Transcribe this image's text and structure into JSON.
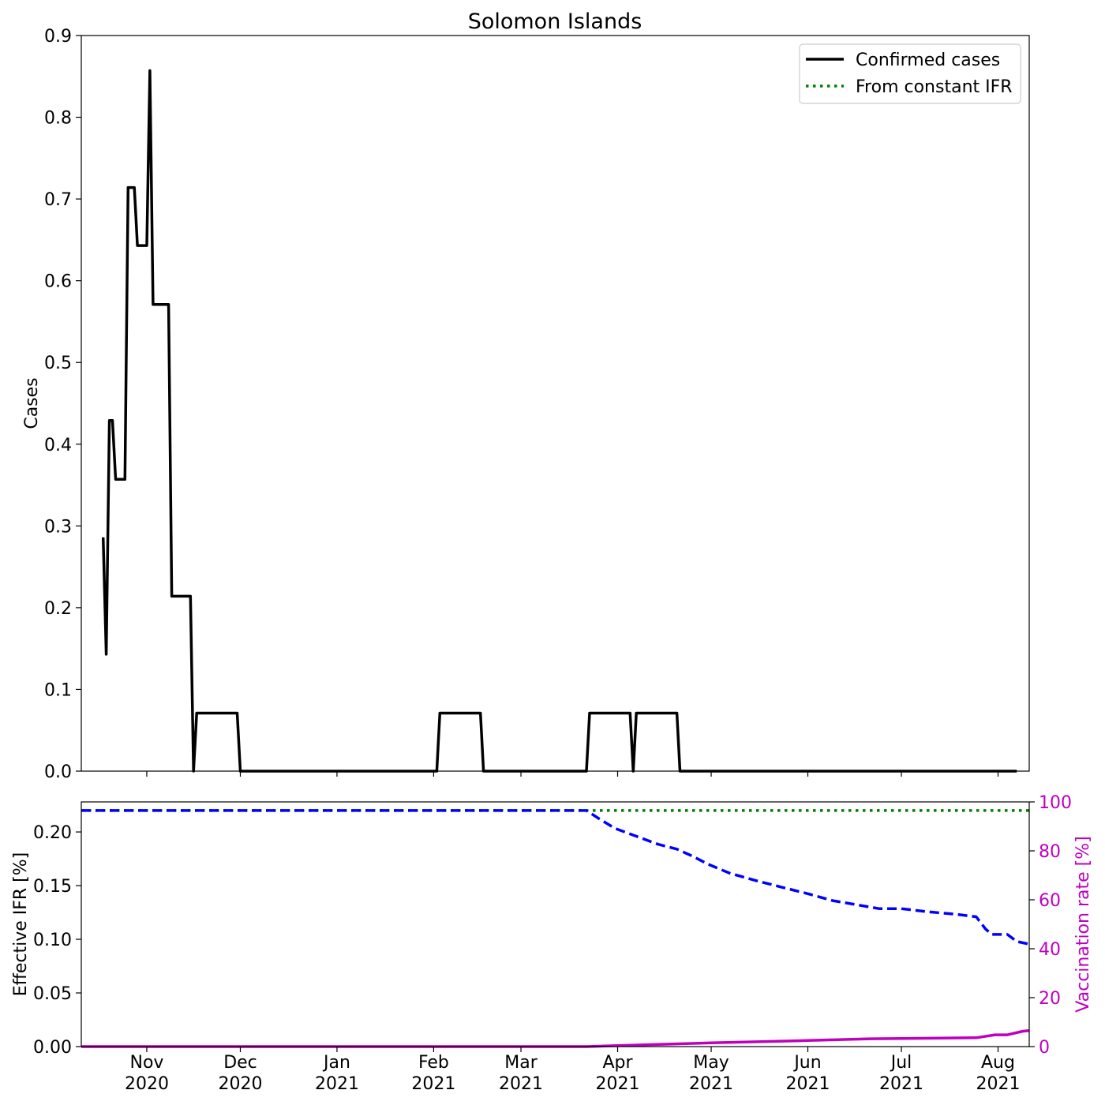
{
  "chart_data": [
    {
      "type": "line",
      "title": "Solomon Islands",
      "xlabel": "",
      "ylabel": "Cases",
      "ylim": [
        0,
        0.9
      ],
      "xlim": [
        "2020-10-11",
        "2021-08-11"
      ],
      "yticks": [
        0.0,
        0.1,
        0.2,
        0.3,
        0.4,
        0.5,
        0.6,
        0.7,
        0.8,
        0.9
      ],
      "ytick_labels": [
        "0.0",
        "0.1",
        "0.2",
        "0.3",
        "0.4",
        "0.5",
        "0.6",
        "0.7",
        "0.8",
        "0.9"
      ],
      "legend": {
        "placement": "top-right",
        "entries": [
          {
            "label": "Confirmed cases",
            "color": "#000000",
            "style": "solid"
          },
          {
            "label": "From constant IFR",
            "color": "#008000",
            "style": "dotted"
          }
        ]
      },
      "series": [
        {
          "name": "Confirmed cases",
          "color": "#000000",
          "points": [
            [
              "2020-10-18",
              0.286
            ],
            [
              "2020-10-19",
              0.143
            ],
            [
              "2020-10-20",
              0.429
            ],
            [
              "2020-10-21",
              0.429
            ],
            [
              "2020-10-22",
              0.357
            ],
            [
              "2020-10-25",
              0.357
            ],
            [
              "2020-10-26",
              0.714
            ],
            [
              "2020-10-28",
              0.714
            ],
            [
              "2020-10-29",
              0.643
            ],
            [
              "2020-11-01",
              0.643
            ],
            [
              "2020-11-02",
              0.857
            ],
            [
              "2020-11-03",
              0.571
            ],
            [
              "2020-11-08",
              0.571
            ],
            [
              "2020-11-09",
              0.214
            ],
            [
              "2020-11-15",
              0.214
            ],
            [
              "2020-11-16",
              0.0
            ],
            [
              "2020-11-17",
              0.071
            ],
            [
              "2020-11-30",
              0.071
            ],
            [
              "2020-12-01",
              0.0
            ],
            [
              "2021-02-02",
              0.0
            ],
            [
              "2021-02-03",
              0.071
            ],
            [
              "2021-02-16",
              0.071
            ],
            [
              "2021-02-17",
              0.0
            ],
            [
              "2021-03-22",
              0.0
            ],
            [
              "2021-03-23",
              0.071
            ],
            [
              "2021-04-05",
              0.071
            ],
            [
              "2021-04-06",
              0.0
            ],
            [
              "2021-04-07",
              0.071
            ],
            [
              "2021-04-20",
              0.071
            ],
            [
              "2021-04-21",
              0.0
            ],
            [
              "2021-08-07",
              0.0
            ]
          ]
        }
      ]
    },
    {
      "type": "line",
      "title": "",
      "xlabel": "",
      "ylabel": "Effective IFR [%]",
      "ylabel_right": "Vaccination rate [%]",
      "ylim": [
        0,
        0.228
      ],
      "ylim_right": [
        0,
        100
      ],
      "xlim": [
        "2020-10-11",
        "2021-08-11"
      ],
      "yticks": [
        0.0,
        0.05,
        0.1,
        0.15,
        0.2
      ],
      "ytick_labels": [
        "0.00",
        "0.05",
        "0.10",
        "0.15",
        "0.20"
      ],
      "yticks_right": [
        0,
        20,
        40,
        60,
        80,
        100
      ],
      "ytick_labels_right": [
        "0",
        "20",
        "40",
        "60",
        "80",
        "100"
      ],
      "right_axis_color": "#bf00bf",
      "xticks": [
        "2020-11-01",
        "2020-12-01",
        "2021-01-01",
        "2021-02-01",
        "2021-03-01",
        "2021-04-01",
        "2021-05-01",
        "2021-06-01",
        "2021-07-01",
        "2021-08-01"
      ],
      "xtick_labels": [
        [
          "Nov",
          "2020"
        ],
        [
          "Dec",
          "2020"
        ],
        [
          "Jan",
          "2021"
        ],
        [
          "Feb",
          "2021"
        ],
        [
          "Mar",
          "2021"
        ],
        [
          "Apr",
          "2021"
        ],
        [
          "May",
          "2021"
        ],
        [
          "Jun",
          "2021"
        ],
        [
          "Jul",
          "2021"
        ],
        [
          "Aug",
          "2021"
        ]
      ],
      "series": [
        {
          "name": "",
          "axis": "left",
          "color": "#008000",
          "style": "dotted",
          "points": [
            [
              "2020-10-11",
              0.22
            ],
            [
              "2021-08-11",
              0.22
            ]
          ]
        },
        {
          "name": "",
          "axis": "left",
          "color": "#0000ff",
          "style": "dashed",
          "points": [
            [
              "2020-10-11",
              0.22
            ],
            [
              "2021-03-22",
              0.22
            ],
            [
              "2021-03-26",
              0.2125
            ],
            [
              "2021-03-31",
              0.2035
            ],
            [
              "2021-04-07",
              0.196
            ],
            [
              "2021-04-14",
              0.1885
            ],
            [
              "2021-04-20",
              0.184
            ],
            [
              "2021-04-25",
              0.1775
            ],
            [
              "2021-04-30",
              0.17
            ],
            [
              "2021-05-07",
              0.1615
            ],
            [
              "2021-05-15",
              0.155
            ],
            [
              "2021-05-23",
              0.149
            ],
            [
              "2021-06-01",
              0.1425
            ],
            [
              "2021-06-09",
              0.136
            ],
            [
              "2021-06-17",
              0.132
            ],
            [
              "2021-06-24",
              0.1285
            ],
            [
              "2021-07-01",
              0.1285
            ],
            [
              "2021-07-10",
              0.1255
            ],
            [
              "2021-07-18",
              0.1235
            ],
            [
              "2021-07-25",
              0.121
            ],
            [
              "2021-07-28",
              0.1095
            ],
            [
              "2021-07-30",
              0.1045
            ],
            [
              "2021-08-04",
              0.1045
            ],
            [
              "2021-08-07",
              0.098
            ],
            [
              "2021-08-11",
              0.0955
            ]
          ]
        },
        {
          "name": "",
          "axis": "right",
          "color": "#bf00bf",
          "style": "solid",
          "points": [
            [
              "2020-10-11",
              0
            ],
            [
              "2021-03-22",
              0
            ],
            [
              "2021-04-01",
              0.4
            ],
            [
              "2021-05-01",
              1.5
            ],
            [
              "2021-06-01",
              2.5
            ],
            [
              "2021-06-21",
              3.2
            ],
            [
              "2021-07-01",
              3.3
            ],
            [
              "2021-07-25",
              3.6
            ],
            [
              "2021-07-31",
              4.8
            ],
            [
              "2021-08-04",
              4.8
            ],
            [
              "2021-08-09",
              6.3
            ],
            [
              "2021-08-11",
              6.5
            ]
          ]
        }
      ]
    }
  ]
}
